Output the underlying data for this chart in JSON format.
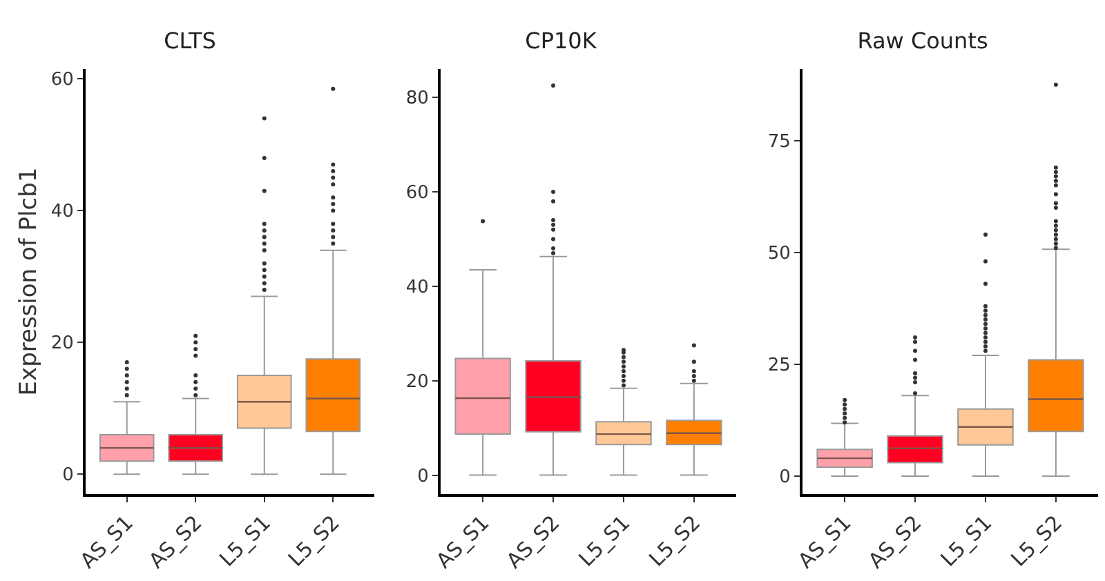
{
  "chart_data": [
    {
      "type": "box",
      "title": "CLTS",
      "ylabel": "Expression of Plcb1",
      "categories": [
        "AS_S1",
        "AS_S2",
        "L5_S1",
        "L5_S2"
      ],
      "colors": [
        "#ffa0ab",
        "#ff0022",
        "#ffc896",
        "#ff8000"
      ],
      "ylim": [
        -3,
        61.5
      ],
      "yticks": [
        0,
        20,
        40,
        60
      ],
      "boxes": [
        {
          "low": 0,
          "q1": 2,
          "median": 4,
          "q3": 6,
          "high": 11,
          "outliers": [
            12,
            13,
            14,
            15,
            16,
            17
          ]
        },
        {
          "low": 0,
          "q1": 2,
          "median": 4,
          "q3": 6,
          "high": 11.5,
          "outliers": [
            12,
            13,
            14,
            15,
            18,
            19,
            20,
            21
          ]
        },
        {
          "low": 0,
          "q1": 7,
          "median": 11,
          "q3": 15,
          "high": 27,
          "outliers": [
            28,
            29,
            30,
            31,
            32,
            34,
            35,
            36,
            37,
            38,
            43,
            48,
            54
          ]
        },
        {
          "low": 0,
          "q1": 6.5,
          "median": 11.5,
          "q3": 17.5,
          "high": 34,
          "outliers": [
            35,
            36,
            37,
            38,
            40,
            41,
            42,
            44,
            45,
            46,
            47,
            58.5
          ]
        }
      ]
    },
    {
      "type": "box",
      "title": "CP10K",
      "categories": [
        "AS_S1",
        "AS_S2",
        "L5_S1",
        "L5_S2"
      ],
      "colors": [
        "#ffa0ab",
        "#ff0022",
        "#ffc896",
        "#ff8000"
      ],
      "ylim": [
        -4,
        86
      ],
      "yticks": [
        0,
        20,
        40,
        60,
        80
      ],
      "boxes": [
        {
          "low": 0,
          "q1": 8.7,
          "median": 16.3,
          "q3": 24.7,
          "high": 43.5,
          "outliers": [
            53.8
          ]
        },
        {
          "low": 0,
          "q1": 9.2,
          "median": 16.5,
          "q3": 24.2,
          "high": 46.3,
          "outliers": [
            47,
            48,
            50,
            52,
            53,
            54,
            58,
            60,
            82.5
          ]
        },
        {
          "low": 0,
          "q1": 6.5,
          "median": 8.7,
          "q3": 11.3,
          "high": 18.4,
          "outliers": [
            19,
            20,
            21,
            22,
            23,
            24,
            25,
            26,
            26.5
          ]
        },
        {
          "low": 0,
          "q1": 6.5,
          "median": 8.9,
          "q3": 11.6,
          "high": 19.4,
          "outliers": [
            20,
            21,
            22,
            24,
            27.5
          ]
        }
      ]
    },
    {
      "type": "box",
      "title": "Raw Counts",
      "categories": [
        "AS_S1",
        "AS_S2",
        "L5_S1",
        "L5_S2"
      ],
      "colors": [
        "#ffa0ab",
        "#ff0022",
        "#ffc896",
        "#ff8000"
      ],
      "ylim": [
        -4,
        91
      ],
      "yticks": [
        0,
        25,
        50,
        75
      ],
      "boxes": [
        {
          "low": 0,
          "q1": 2,
          "median": 4,
          "q3": 6,
          "high": 11.8,
          "outliers": [
            12,
            13,
            14,
            15,
            16,
            17
          ]
        },
        {
          "low": 0,
          "q1": 3,
          "median": 6.2,
          "q3": 9,
          "high": 18,
          "outliers": [
            18.5,
            21,
            22,
            23,
            26,
            28,
            30,
            31
          ]
        },
        {
          "low": 0,
          "q1": 7,
          "median": 11,
          "q3": 15,
          "high": 27,
          "outliers": [
            28,
            29,
            30,
            31,
            32,
            33,
            34,
            35,
            36,
            37,
            38,
            43,
            48,
            54
          ]
        },
        {
          "low": 0,
          "q1": 10,
          "median": 17.2,
          "q3": 26,
          "high": 50.7,
          "outliers": [
            51,
            52,
            53,
            54,
            55,
            56,
            57,
            60,
            61,
            63,
            65,
            66,
            67,
            68,
            69,
            87.5
          ]
        }
      ]
    }
  ]
}
